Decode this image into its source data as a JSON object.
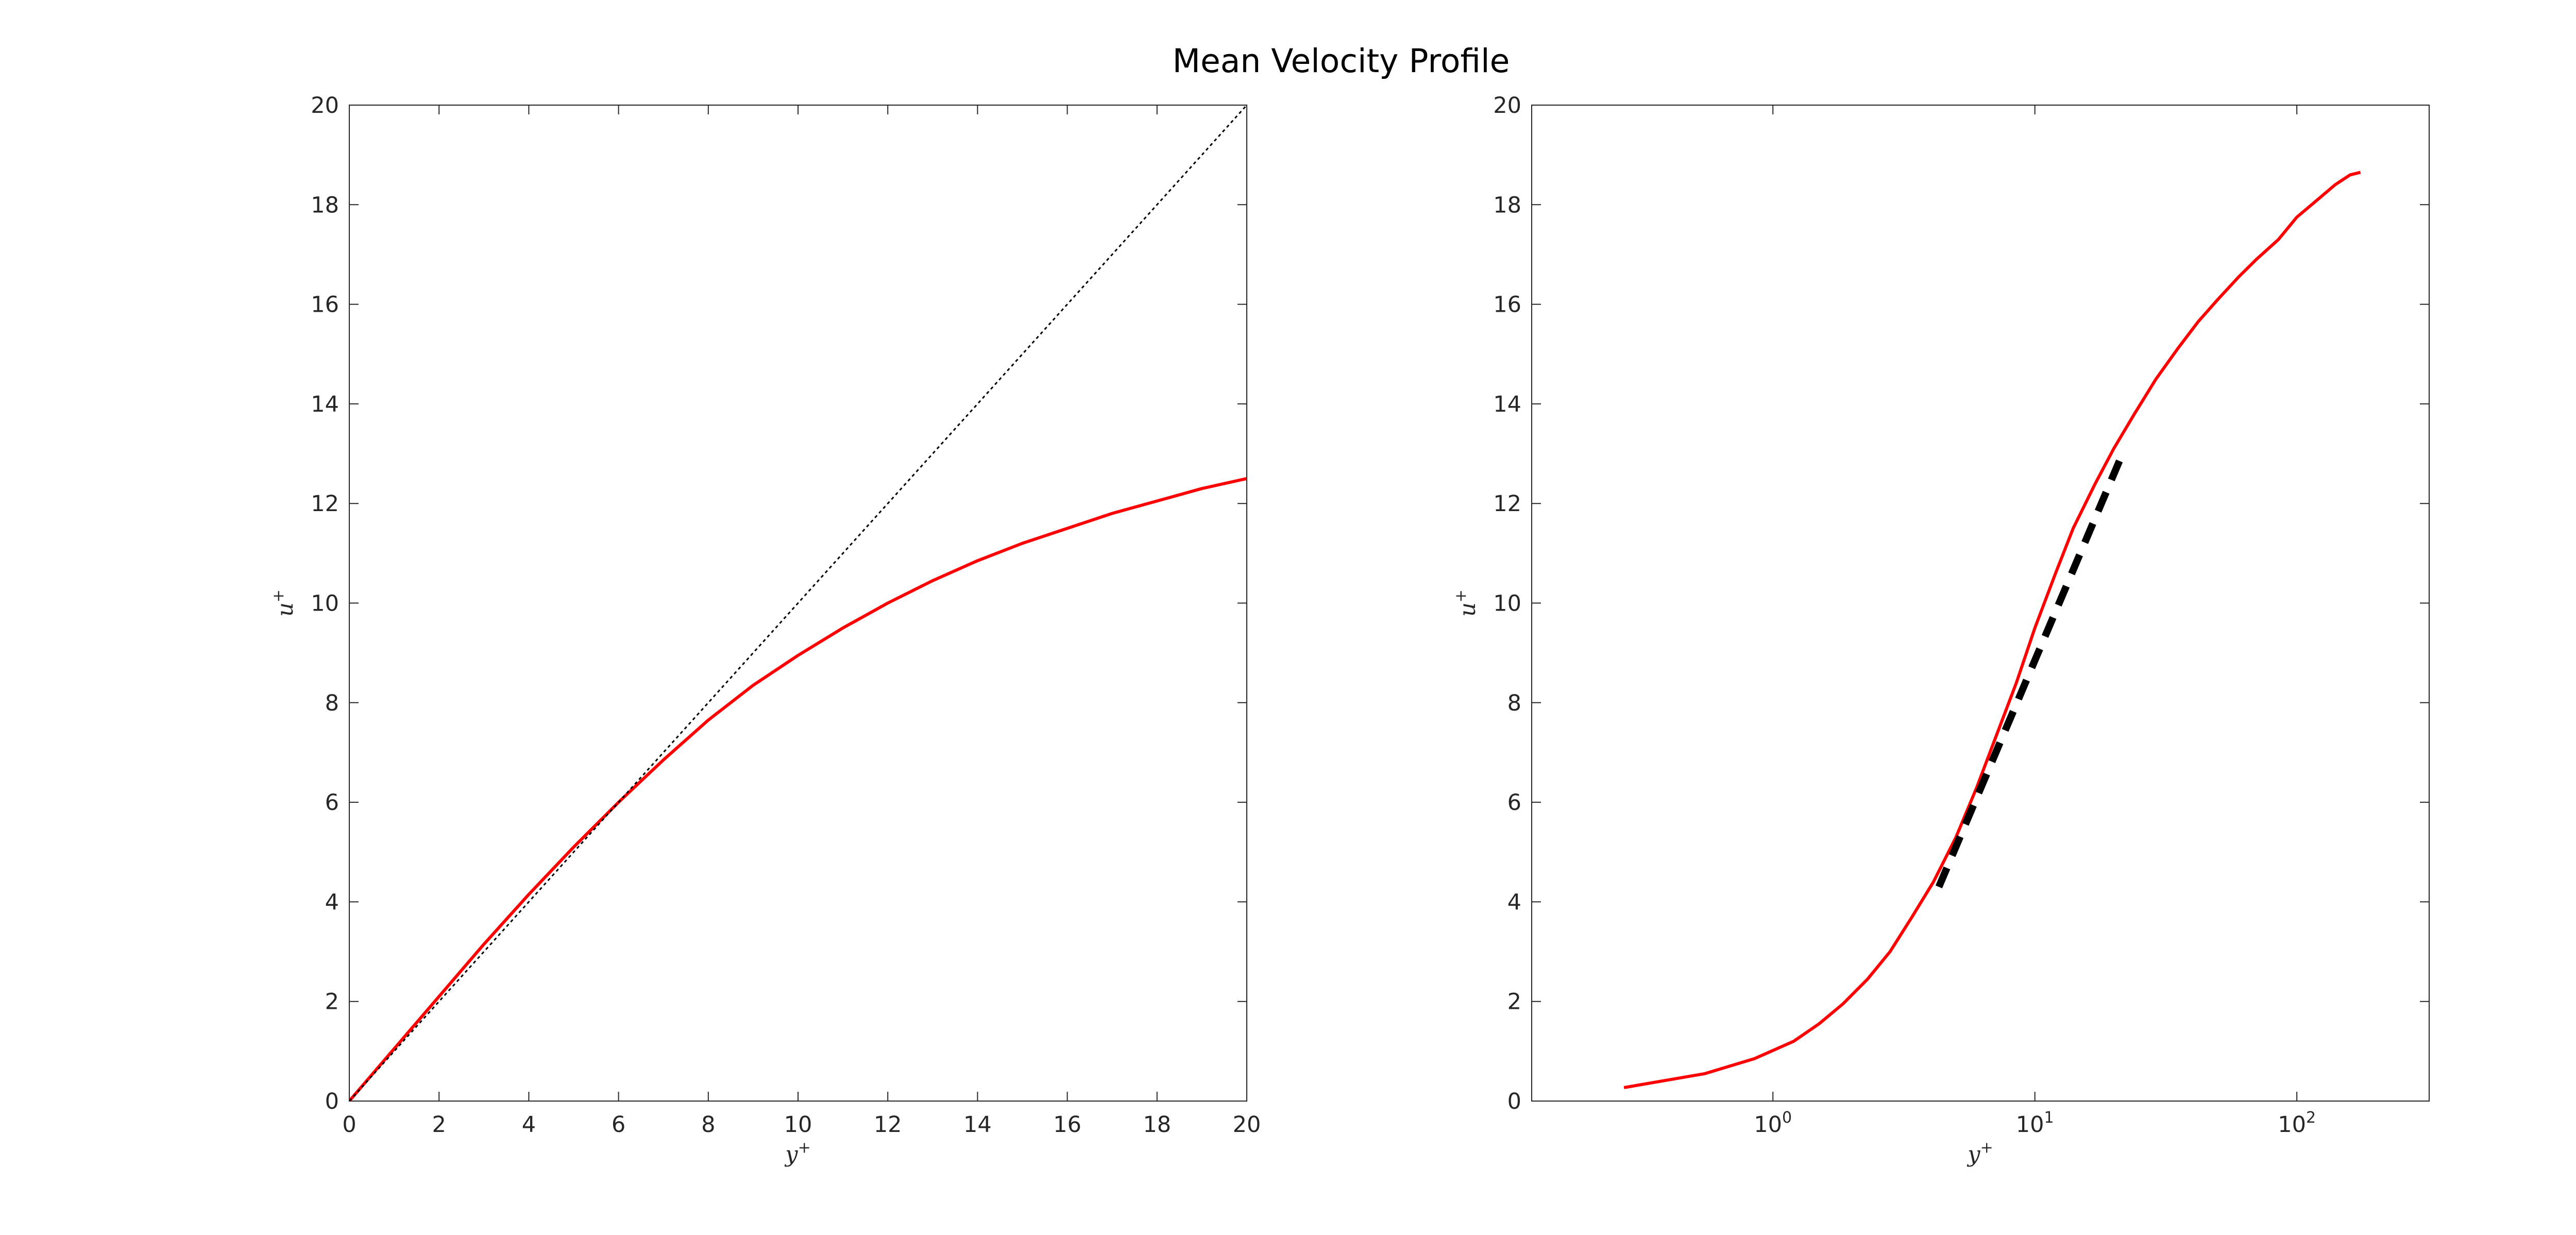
{
  "figure": {
    "title": "Mean Velocity Profile"
  },
  "chart_data": [
    {
      "type": "line",
      "xlabel": "y",
      "xlabel_sup": "+",
      "ylabel": "u",
      "ylabel_sup": "+",
      "xscale": "linear",
      "xlim": [
        0,
        20
      ],
      "ylim": [
        0,
        20
      ],
      "xticks": [
        "0",
        "2",
        "4",
        "6",
        "8",
        "10",
        "12",
        "14",
        "16",
        "18",
        "20"
      ],
      "yticks": [
        "0",
        "2",
        "4",
        "6",
        "8",
        "10",
        "12",
        "14",
        "16",
        "18",
        "20"
      ],
      "grid": false,
      "series": [
        {
          "style": "solid",
          "color": "#ff0000",
          "x": [
            0,
            1,
            2,
            3,
            4,
            5,
            6,
            7,
            8,
            9,
            10,
            11,
            12,
            13,
            14,
            15,
            16,
            17,
            18,
            19,
            20
          ],
          "y": [
            0,
            1.05,
            2.1,
            3.15,
            4.15,
            5.1,
            6.0,
            6.85,
            7.65,
            8.35,
            8.95,
            9.5,
            10.0,
            10.45,
            10.85,
            11.2,
            11.5,
            11.8,
            12.05,
            12.3,
            12.5
          ]
        },
        {
          "style": "dotted",
          "color": "#000000",
          "x": [
            0,
            20
          ],
          "y": [
            0,
            20
          ]
        }
      ]
    },
    {
      "type": "line",
      "xlabel": "y",
      "xlabel_sup": "+",
      "ylabel": "u",
      "ylabel_sup": "+",
      "xscale": "log",
      "xlim": [
        0.12,
        320
      ],
      "ylim": [
        0,
        20
      ],
      "xticks": [
        {
          "value": 1,
          "base": "10",
          "exp": "0"
        },
        {
          "value": 10,
          "base": "10",
          "exp": "1"
        },
        {
          "value": 100,
          "base": "10",
          "exp": "2"
        }
      ],
      "yticks": [
        "0",
        "2",
        "4",
        "6",
        "8",
        "10",
        "12",
        "14",
        "16",
        "18",
        "20"
      ],
      "grid": false,
      "series": [
        {
          "style": "solid",
          "color": "#ff0000",
          "x": [
            0.27,
            0.55,
            0.85,
            1.2,
            1.5,
            1.85,
            2.3,
            2.8,
            3.4,
            4.1,
            5.0,
            6.0,
            7.2,
            8.5,
            10,
            12,
            14,
            17,
            20,
            24,
            29,
            35,
            42,
            50,
            60,
            70,
            85,
            100,
            120,
            140,
            160,
            175
          ],
          "y": [
            0.27,
            0.55,
            0.85,
            1.2,
            1.55,
            1.95,
            2.45,
            3.0,
            3.7,
            4.4,
            5.3,
            6.3,
            7.4,
            8.4,
            9.5,
            10.6,
            11.5,
            12.4,
            13.1,
            13.8,
            14.5,
            15.1,
            15.65,
            16.1,
            16.55,
            16.9,
            17.3,
            17.75,
            18.1,
            18.4,
            18.6,
            18.65
          ]
        },
        {
          "style": "dashed",
          "color": "#000000",
          "x": [
            4.3,
            22
          ],
          "y": [
            4.3,
            13.1
          ]
        }
      ]
    }
  ]
}
